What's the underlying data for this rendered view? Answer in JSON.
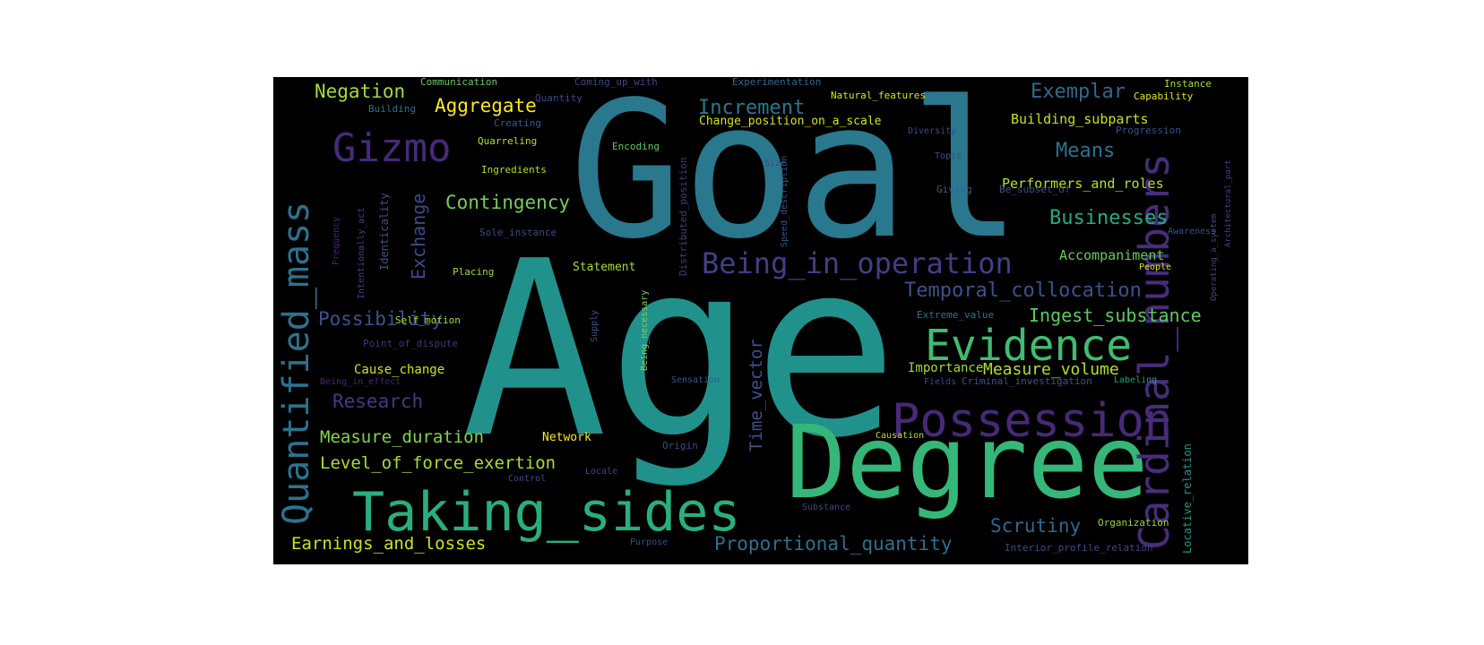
{
  "colors": {
    "background": "#000000",
    "page": "#ffffff"
  },
  "words": [
    {
      "text": "Age",
      "color": "#21918c"
    },
    {
      "text": "Goal",
      "color": "#2a788e"
    },
    {
      "text": "Degree",
      "color": "#35b779"
    },
    {
      "text": "Taking_sides",
      "color": "#29af7f"
    },
    {
      "text": "Possession",
      "color": "#482878"
    },
    {
      "text": "Quantified_mass",
      "color": "#2c728e"
    },
    {
      "text": "Cardinal_numbers",
      "color": "#472d7b"
    },
    {
      "text": "Evidence",
      "color": "#3fbc73"
    },
    {
      "text": "Gizmo",
      "color": "#472a7a"
    },
    {
      "text": "Being_in_operation",
      "color": "#433e85"
    },
    {
      "text": "Temporal_collocation",
      "color": "#3b528b"
    },
    {
      "text": "Proportional_quantity",
      "color": "#2e6f8e"
    },
    {
      "text": "Increment",
      "color": "#2a788e"
    },
    {
      "text": "Exemplar",
      "color": "#31688e"
    },
    {
      "text": "Means",
      "color": "#2c728e"
    },
    {
      "text": "Businesses",
      "color": "#25ac82"
    },
    {
      "text": "Ingest_substance",
      "color": "#5ec962"
    },
    {
      "text": "Measure_volume",
      "color": "#b5de2b"
    },
    {
      "text": "Contingency",
      "color": "#73d056"
    },
    {
      "text": "Exchange",
      "color": "#3e4a89"
    },
    {
      "text": "Possibility",
      "color": "#3b528b"
    },
    {
      "text": "Research",
      "color": "#443983"
    },
    {
      "text": "Measure_duration",
      "color": "#84d44b"
    },
    {
      "text": "Level_of_force_exertion",
      "color": "#addc30"
    },
    {
      "text": "Earnings_and_losses",
      "color": "#d0e11c"
    },
    {
      "text": "Scrutiny",
      "color": "#31688e"
    },
    {
      "text": "Negation",
      "color": "#a5db36"
    },
    {
      "text": "Aggregate",
      "color": "#fde725"
    },
    {
      "text": "Time_vector",
      "color": "#3b528b"
    },
    {
      "text": "Accompaniment",
      "color": "#65cb5e"
    },
    {
      "text": "Performers_and_roles",
      "color": "#bade28"
    },
    {
      "text": "Building_subparts",
      "color": "#c8e020"
    },
    {
      "text": "Change_position_on_a_scale",
      "color": "#d8e219"
    },
    {
      "text": "Statement",
      "color": "#a8db34"
    },
    {
      "text": "Cause_change",
      "color": "#d5e21a"
    },
    {
      "text": "Importance",
      "color": "#a2da37"
    },
    {
      "text": "Network",
      "color": "#fde725"
    },
    {
      "text": "Locative_relation",
      "color": "#1f988b"
    },
    {
      "text": "Interior_profile_relation",
      "color": "#3e4a89"
    },
    {
      "text": "Organization",
      "color": "#95d840"
    },
    {
      "text": "Natural_features",
      "color": "#dde318"
    },
    {
      "text": "Point_of_dispute",
      "color": "#46327e"
    },
    {
      "text": "Self_motion",
      "color": "#a0da39"
    },
    {
      "text": "Placing",
      "color": "#9dd93b"
    },
    {
      "text": "Sole_instance",
      "color": "#3e4a89"
    },
    {
      "text": "Identicality",
      "color": "#3b528b"
    },
    {
      "text": "Intentionally_act",
      "color": "#414487"
    },
    {
      "text": "Frequency",
      "color": "#482677"
    },
    {
      "text": "Ingredients",
      "color": "#bade28"
    },
    {
      "text": "Quarreling",
      "color": "#b5de2b"
    },
    {
      "text": "Creating",
      "color": "#38588c"
    },
    {
      "text": "Building",
      "color": "#2d708e"
    },
    {
      "text": "Communication",
      "color": "#65cb5e"
    },
    {
      "text": "Quantity",
      "color": "#3e4a89"
    },
    {
      "text": "Coming_up_with",
      "color": "#414487"
    },
    {
      "text": "Encoding",
      "color": "#5ec962"
    },
    {
      "text": "Experimentation",
      "color": "#31688e"
    },
    {
      "text": "Distributed_position",
      "color": "#443a83"
    },
    {
      "text": "Speed_description",
      "color": "#3b528b"
    },
    {
      "text": "Size",
      "color": "#3e4a89"
    },
    {
      "text": "Topic",
      "color": "#3e4a89"
    },
    {
      "text": "Diversity",
      "color": "#3e4a89"
    },
    {
      "text": "Giving",
      "color": "#34618d"
    },
    {
      "text": "Be_subset_of",
      "color": "#3b528b"
    },
    {
      "text": "Progression",
      "color": "#3b528b"
    },
    {
      "text": "Instance",
      "color": "#a8db34"
    },
    {
      "text": "Capability",
      "color": "#e5e419"
    },
    {
      "text": "Awareness",
      "color": "#3b528b"
    },
    {
      "text": "People",
      "color": "#d2e21b"
    },
    {
      "text": "Extreme_value",
      "color": "#2a788e"
    },
    {
      "text": "Fields",
      "color": "#3e4a89"
    },
    {
      "text": "Criminal_investigation",
      "color": "#38588c"
    },
    {
      "text": "Labeling",
      "color": "#1fa088"
    },
    {
      "text": "Causation",
      "color": "#bade28"
    },
    {
      "text": "Origin",
      "color": "#3e4a89"
    },
    {
      "text": "Sensation",
      "color": "#39568c"
    },
    {
      "text": "Supply",
      "color": "#3b528b"
    },
    {
      "text": "Being_necessary",
      "color": "#7fd34e"
    },
    {
      "text": "Being_in_effect",
      "color": "#482677"
    },
    {
      "text": "Locale",
      "color": "#414487"
    },
    {
      "text": "Control",
      "color": "#3e4a89"
    },
    {
      "text": "Substance",
      "color": "#3e4a89"
    },
    {
      "text": "Purpose",
      "color": "#3e4a89"
    },
    {
      "text": "Architectural_part",
      "color": "#414487"
    },
    {
      "text": "Operating_a_system",
      "color": "#3e4a89"
    }
  ]
}
